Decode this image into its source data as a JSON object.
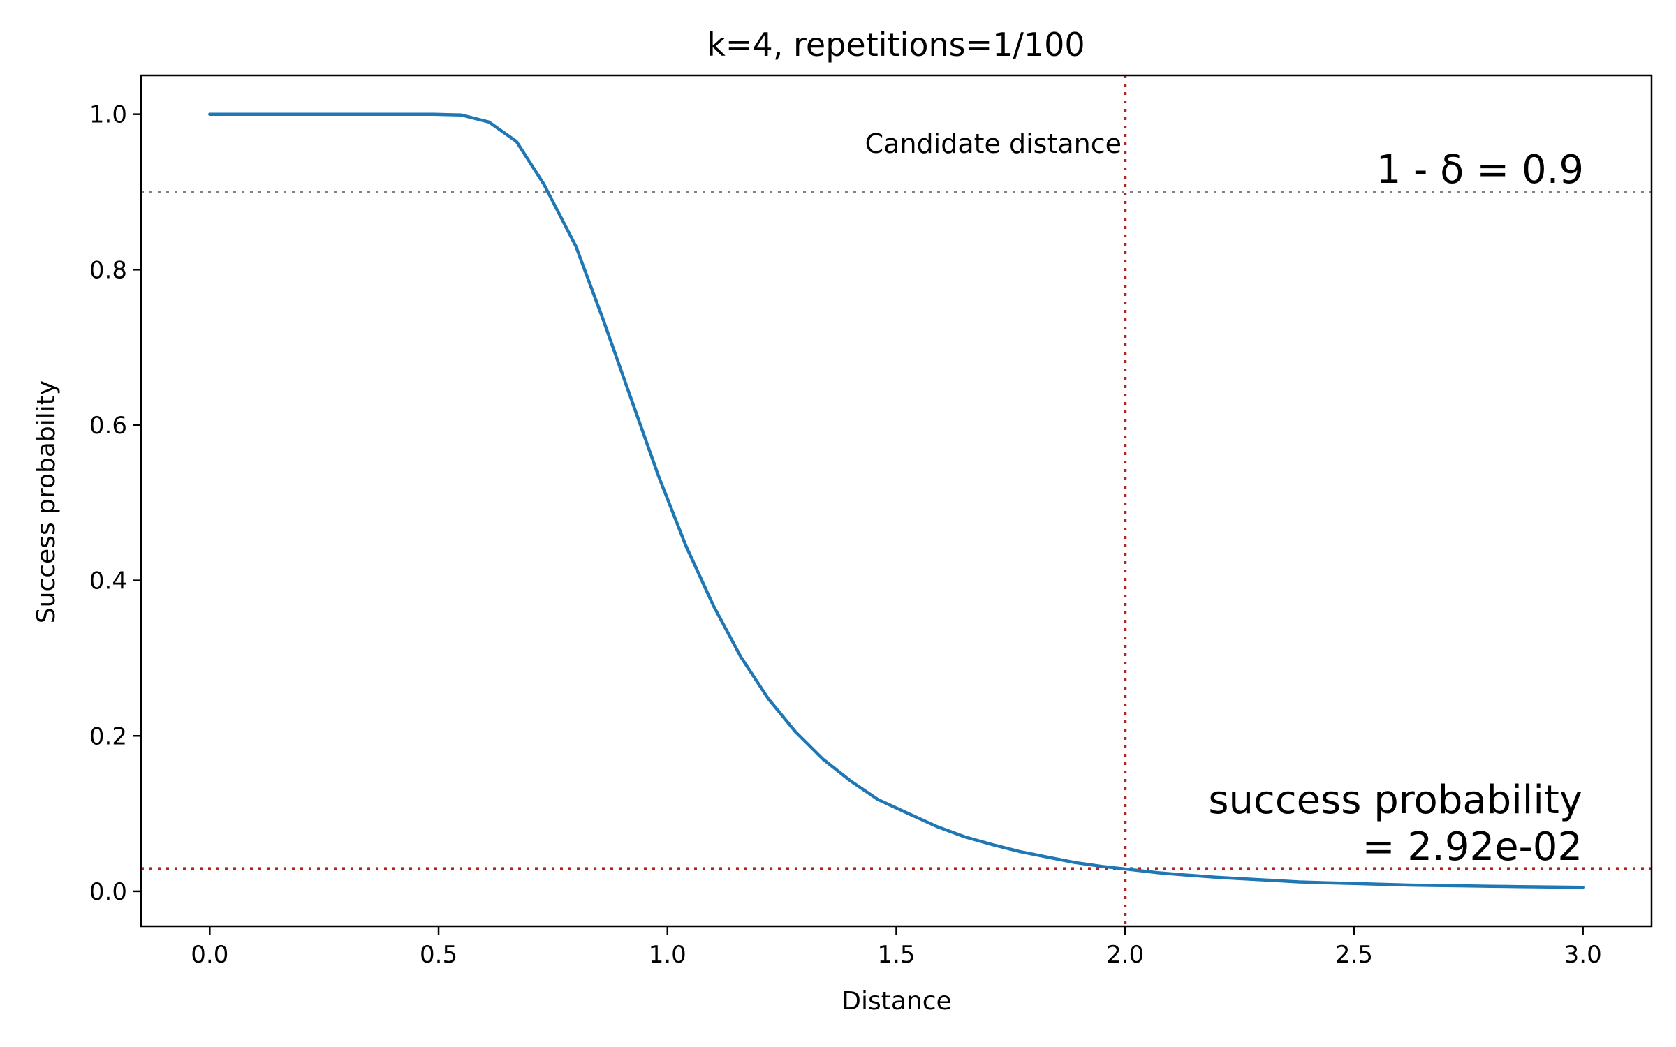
{
  "chart_data": {
    "type": "line",
    "title": "k=4, repetitions=1/100",
    "xlabel": "Distance",
    "ylabel": "Success probability",
    "xlim": [
      -0.15,
      3.15
    ],
    "ylim": [
      -0.045,
      1.05
    ],
    "xticks": [
      0.0,
      0.5,
      1.0,
      1.5,
      2.0,
      2.5,
      3.0
    ],
    "xtick_labels": [
      "0.0",
      "0.5",
      "1.0",
      "1.5",
      "2.0",
      "2.5",
      "3.0"
    ],
    "yticks": [
      0.0,
      0.2,
      0.4,
      0.6,
      0.8,
      1.0
    ],
    "ytick_labels": [
      "0.0",
      "0.2",
      "0.4",
      "0.6",
      "0.8",
      "1.0"
    ],
    "grid": false,
    "series": [
      {
        "color": "#1f77b4",
        "x": [
          0.0,
          0.06,
          0.12,
          0.18,
          0.24,
          0.3,
          0.37,
          0.43,
          0.49,
          0.55,
          0.61,
          0.67,
          0.73,
          0.8,
          0.86,
          0.92,
          0.98,
          1.04,
          1.1,
          1.16,
          1.22,
          1.28,
          1.34,
          1.4,
          1.46,
          1.53,
          1.59,
          1.65,
          1.71,
          1.77,
          1.83,
          1.89,
          1.95,
          2.01,
          2.07,
          2.13,
          2.2,
          2.26,
          2.32,
          2.38,
          2.44,
          2.5,
          2.56,
          2.62,
          2.68,
          2.74,
          2.8,
          2.86,
          2.93,
          3.0
        ],
        "y": [
          1.0,
          1.0,
          1.0,
          1.0,
          1.0,
          1.0,
          1.0,
          1.0,
          1.0,
          0.999,
          0.99,
          0.965,
          0.91,
          0.83,
          0.735,
          0.635,
          0.535,
          0.445,
          0.368,
          0.302,
          0.248,
          0.205,
          0.17,
          0.142,
          0.118,
          0.099,
          0.083,
          0.07,
          0.06,
          0.051,
          0.044,
          0.037,
          0.032,
          0.028,
          0.024,
          0.021,
          0.018,
          0.016,
          0.014,
          0.012,
          0.011,
          0.01,
          0.009,
          0.008,
          0.0075,
          0.007,
          0.0065,
          0.006,
          0.0055,
          0.005
        ]
      }
    ],
    "threshold_line": {
      "y": 0.9,
      "color": "#808080",
      "label": "1 - δ = 0.9"
    },
    "candidate_line": {
      "x": 2.0,
      "color": "#b22222",
      "label": "Candidate distance"
    },
    "result_line": {
      "y": 0.0292,
      "color": "#b22222",
      "label_line1": "success probability",
      "label_line2": "= 2.92e-02"
    }
  }
}
